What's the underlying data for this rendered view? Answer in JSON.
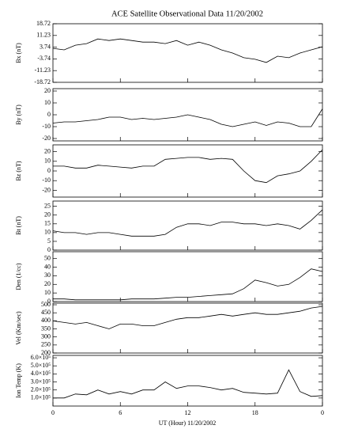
{
  "chart_data": [
    {
      "type": "line",
      "title": "ACE Satellite Observational Data   11/20/2002",
      "ylabel": "Bx (nT)",
      "ylim": [
        -18.72,
        18.72
      ],
      "yticks": [
        18.72,
        11.23,
        3.74,
        -3.74,
        -11.23,
        -18.72
      ],
      "x": [
        0,
        1,
        2,
        3,
        4,
        5,
        6,
        7,
        8,
        9,
        10,
        11,
        12,
        13,
        14,
        15,
        16,
        17,
        18,
        19,
        20,
        21,
        22,
        23,
        24
      ],
      "values": [
        3,
        2,
        5,
        6,
        9,
        8,
        9,
        8,
        7,
        7,
        6,
        8,
        5,
        7,
        5,
        2,
        0,
        -3,
        -4,
        -6,
        -2,
        -3,
        0,
        2,
        4
      ]
    },
    {
      "type": "line",
      "ylabel": "By (nT)",
      "ylim": [
        -22,
        22
      ],
      "yticks": [
        20,
        10,
        0,
        -10,
        -20
      ],
      "x": [
        0,
        1,
        2,
        3,
        4,
        5,
        6,
        7,
        8,
        9,
        10,
        11,
        12,
        13,
        14,
        15,
        16,
        17,
        18,
        19,
        20,
        21,
        22,
        23,
        24
      ],
      "values": [
        -7,
        -6,
        -6,
        -5,
        -4,
        -2,
        -2,
        -4,
        -3,
        -4,
        -3,
        -2,
        0,
        -2,
        -4,
        -8,
        -10,
        -8,
        -6,
        -9,
        -6,
        -7,
        -10,
        -10,
        5
      ]
    },
    {
      "type": "line",
      "ylabel": "Bz (nT)",
      "ylim": [
        -27,
        27
      ],
      "yticks": [
        20,
        10,
        0,
        -10,
        -20
      ],
      "x": [
        0,
        1,
        2,
        3,
        4,
        5,
        6,
        7,
        8,
        9,
        10,
        11,
        12,
        13,
        14,
        15,
        16,
        17,
        18,
        19,
        20,
        21,
        22,
        23,
        24
      ],
      "values": [
        5,
        5,
        3,
        3,
        6,
        5,
        4,
        3,
        5,
        5,
        12,
        13,
        14,
        14,
        12,
        13,
        12,
        0,
        -10,
        -12,
        -5,
        -3,
        0,
        10,
        22
      ]
    },
    {
      "type": "line",
      "ylabel": "Bt (nT)",
      "ylim": [
        0,
        28
      ],
      "yticks": [
        0,
        5,
        10,
        15,
        20,
        25
      ],
      "x": [
        0,
        1,
        2,
        3,
        4,
        5,
        6,
        7,
        8,
        9,
        10,
        11,
        12,
        13,
        14,
        15,
        16,
        17,
        18,
        19,
        20,
        21,
        22,
        23,
        24
      ],
      "values": [
        11,
        10,
        10,
        9,
        10,
        10,
        9,
        8,
        8,
        8,
        9,
        13,
        15,
        15,
        14,
        16,
        16,
        15,
        15,
        14,
        15,
        14,
        12,
        17,
        23
      ]
    },
    {
      "type": "line",
      "ylabel": "Den (1/cc)",
      "ylim": [
        0,
        58
      ],
      "yticks": [
        0,
        10,
        20,
        30,
        40,
        50
      ],
      "x": [
        0,
        1,
        2,
        3,
        4,
        5,
        6,
        7,
        8,
        9,
        10,
        11,
        12,
        13,
        14,
        15,
        16,
        17,
        18,
        19,
        20,
        21,
        22,
        23,
        24
      ],
      "values": [
        3,
        3,
        2,
        2,
        2,
        2,
        2,
        3,
        3,
        3,
        4,
        5,
        5,
        6,
        7,
        8,
        9,
        15,
        25,
        22,
        18,
        20,
        28,
        38,
        35
      ]
    },
    {
      "type": "line",
      "ylabel": "Vel (Km/sec)",
      "ylim": [
        200,
        510
      ],
      "yticks": [
        200,
        250,
        300,
        350,
        400,
        450,
        500
      ],
      "x": [
        0,
        1,
        2,
        3,
        4,
        5,
        6,
        7,
        8,
        9,
        10,
        11,
        12,
        13,
        14,
        15,
        16,
        17,
        18,
        19,
        20,
        21,
        22,
        23,
        24
      ],
      "values": [
        400,
        390,
        380,
        390,
        370,
        350,
        380,
        380,
        370,
        370,
        390,
        410,
        420,
        420,
        430,
        440,
        430,
        440,
        450,
        440,
        440,
        450,
        460,
        480,
        490
      ]
    },
    {
      "type": "line",
      "ylabel": "Ion Temp (K)",
      "xlabel": "UT (Hour)  11/20/2002",
      "ylim": [
        0,
        630000
      ],
      "yticks": [
        {
          "value": 100000,
          "label": "1.0×10⁵"
        },
        {
          "value": 200000,
          "label": "2.0×10⁵"
        },
        {
          "value": 300000,
          "label": "3.0×10⁵"
        },
        {
          "value": 400000,
          "label": "4.0×10⁵"
        },
        {
          "value": 500000,
          "label": "5.0×10⁵"
        },
        {
          "value": 600000,
          "label": "6.0×10⁵"
        }
      ],
      "xlim": [
        0,
        24
      ],
      "xticks": [
        0,
        6,
        12,
        18,
        {
          "value": 24,
          "label": "0"
        }
      ],
      "x": [
        0,
        1,
        2,
        3,
        4,
        5,
        6,
        7,
        8,
        9,
        10,
        11,
        12,
        13,
        14,
        15,
        16,
        17,
        18,
        19,
        20,
        21,
        22,
        23,
        24
      ],
      "values": [
        100000,
        100000,
        150000,
        140000,
        200000,
        150000,
        180000,
        150000,
        200000,
        200000,
        300000,
        220000,
        250000,
        250000,
        230000,
        200000,
        220000,
        170000,
        160000,
        150000,
        160000,
        450000,
        180000,
        120000,
        130000
      ]
    }
  ]
}
